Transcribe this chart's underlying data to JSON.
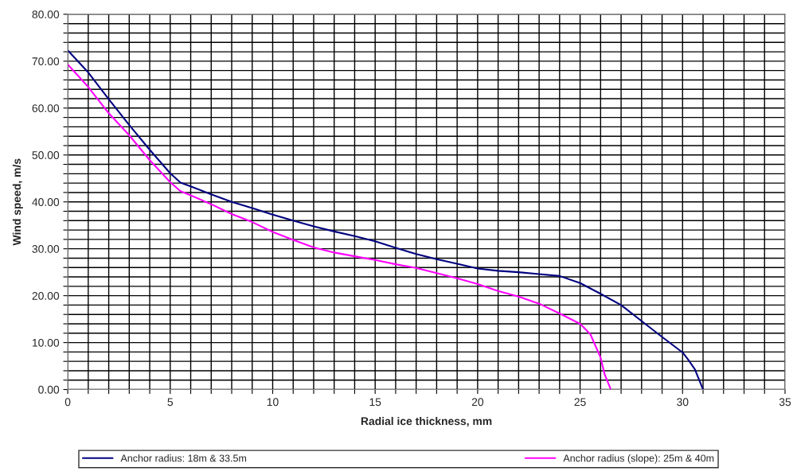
{
  "chart_data": {
    "type": "line",
    "xlabel": "Radial ice thickness, mm",
    "ylabel": "Wind speed, m/s",
    "series": [
      {
        "name": "Anchor radius: 18m & 33.5m",
        "color": "#000080",
        "x": [
          0,
          1,
          2,
          3,
          4,
          5,
          5.5,
          6,
          7,
          8,
          9,
          10,
          11,
          12,
          13,
          14,
          15,
          16,
          17,
          18,
          19,
          20,
          21,
          22,
          23,
          24,
          25,
          26,
          27,
          28,
          29,
          30,
          30.3,
          30.6,
          31
        ],
        "values": [
          72.3,
          67.6,
          61.9,
          56.4,
          51.1,
          46.1,
          44.1,
          43.3,
          41.6,
          40,
          38.7,
          37.3,
          36,
          34.8,
          33.7,
          32.7,
          31.6,
          30.2,
          28.9,
          27.8,
          26.8,
          25.8,
          25.3,
          25,
          24.6,
          24.2,
          22.7,
          20.4,
          18,
          14.6,
          11.2,
          7.9,
          6.2,
          4.3,
          0
        ]
      },
      {
        "name": "Anchor radius (slope): 25m & 40m",
        "color": "#ff00ff",
        "x": [
          0,
          1,
          2,
          3,
          4,
          5,
          5.5,
          6,
          7,
          8,
          9,
          10,
          11,
          12,
          13,
          14,
          15,
          16,
          17,
          18,
          19,
          20,
          21,
          22,
          23,
          24,
          25,
          25.5,
          26,
          26.2,
          26.5
        ],
        "values": [
          69.3,
          64.5,
          58.9,
          54.2,
          48.9,
          44.2,
          42.3,
          41.4,
          39.5,
          37.4,
          35.7,
          33.6,
          31.9,
          30.3,
          29.2,
          28.4,
          27.6,
          26.7,
          25.9,
          24.8,
          23.7,
          22.5,
          21,
          19.8,
          18.3,
          16.2,
          14,
          11.8,
          6.8,
          3.2,
          0
        ]
      }
    ],
    "xlim": [
      0,
      35
    ],
    "ylim": [
      0,
      80
    ],
    "xticks": [
      0,
      {
        "value": 1,
        "label": null
      },
      {
        "value": 2,
        "label": null
      },
      {
        "value": 3,
        "label": null
      },
      {
        "value": 4,
        "label": null
      },
      5,
      {
        "value": 6,
        "label": null
      },
      {
        "value": 7,
        "label": null
      },
      {
        "value": 8,
        "label": null
      },
      {
        "value": 9,
        "label": null
      },
      10,
      {
        "value": 11,
        "label": null
      },
      {
        "value": 12,
        "label": null
      },
      {
        "value": 13,
        "label": null
      },
      {
        "value": 14,
        "label": null
      },
      15,
      {
        "value": 16,
        "label": null
      },
      {
        "value": 17,
        "label": null
      },
      {
        "value": 18,
        "label": null
      },
      {
        "value": 19,
        "label": null
      },
      20,
      {
        "value": 21,
        "label": null
      },
      {
        "value": 22,
        "label": null
      },
      {
        "value": 23,
        "label": null
      },
      {
        "value": 24,
        "label": null
      },
      25,
      {
        "value": 26,
        "label": null
      },
      {
        "value": 27,
        "label": null
      },
      {
        "value": 28,
        "label": null
      },
      {
        "value": 29,
        "label": null
      },
      30,
      {
        "value": 31,
        "label": null
      },
      {
        "value": 32,
        "label": null
      },
      {
        "value": 33,
        "label": null
      },
      {
        "value": 34,
        "label": null
      },
      35
    ],
    "yticks": [
      {
        "value": 0,
        "label": "0.00"
      },
      {
        "value": 2,
        "label": null
      },
      {
        "value": 4,
        "label": null
      },
      {
        "value": 6,
        "label": null
      },
      {
        "value": 8,
        "label": null
      },
      {
        "value": 10,
        "label": "10.00"
      },
      {
        "value": 12,
        "label": null
      },
      {
        "value": 14,
        "label": null
      },
      {
        "value": 16,
        "label": null
      },
      {
        "value": 18,
        "label": null
      },
      {
        "value": 20,
        "label": "20.00"
      },
      {
        "value": 22,
        "label": null
      },
      {
        "value": 24,
        "label": null
      },
      {
        "value": 26,
        "label": null
      },
      {
        "value": 28,
        "label": null
      },
      {
        "value": 30,
        "label": "30.00"
      },
      {
        "value": 32,
        "label": null
      },
      {
        "value": 34,
        "label": null
      },
      {
        "value": 36,
        "label": null
      },
      {
        "value": 38,
        "label": null
      },
      {
        "value": 40,
        "label": "40.00"
      },
      {
        "value": 42,
        "label": null
      },
      {
        "value": 44,
        "label": null
      },
      {
        "value": 46,
        "label": null
      },
      {
        "value": 48,
        "label": null
      },
      {
        "value": 50,
        "label": "50.00"
      },
      {
        "value": 52,
        "label": null
      },
      {
        "value": 54,
        "label": null
      },
      {
        "value": 56,
        "label": null
      },
      {
        "value": 58,
        "label": null
      },
      {
        "value": 60,
        "label": "60.00"
      },
      {
        "value": 62,
        "label": null
      },
      {
        "value": 64,
        "label": null
      },
      {
        "value": 66,
        "label": null
      },
      {
        "value": 68,
        "label": null
      },
      {
        "value": 70,
        "label": "70.00"
      },
      {
        "value": 72,
        "label": null
      },
      {
        "value": 74,
        "label": null
      },
      {
        "value": 76,
        "label": null
      },
      {
        "value": 78,
        "label": null
      },
      {
        "value": 80,
        "label": "80.00"
      }
    ],
    "grid": true,
    "legend": "bottom",
    "marker": "none",
    "line_style": "solid"
  }
}
